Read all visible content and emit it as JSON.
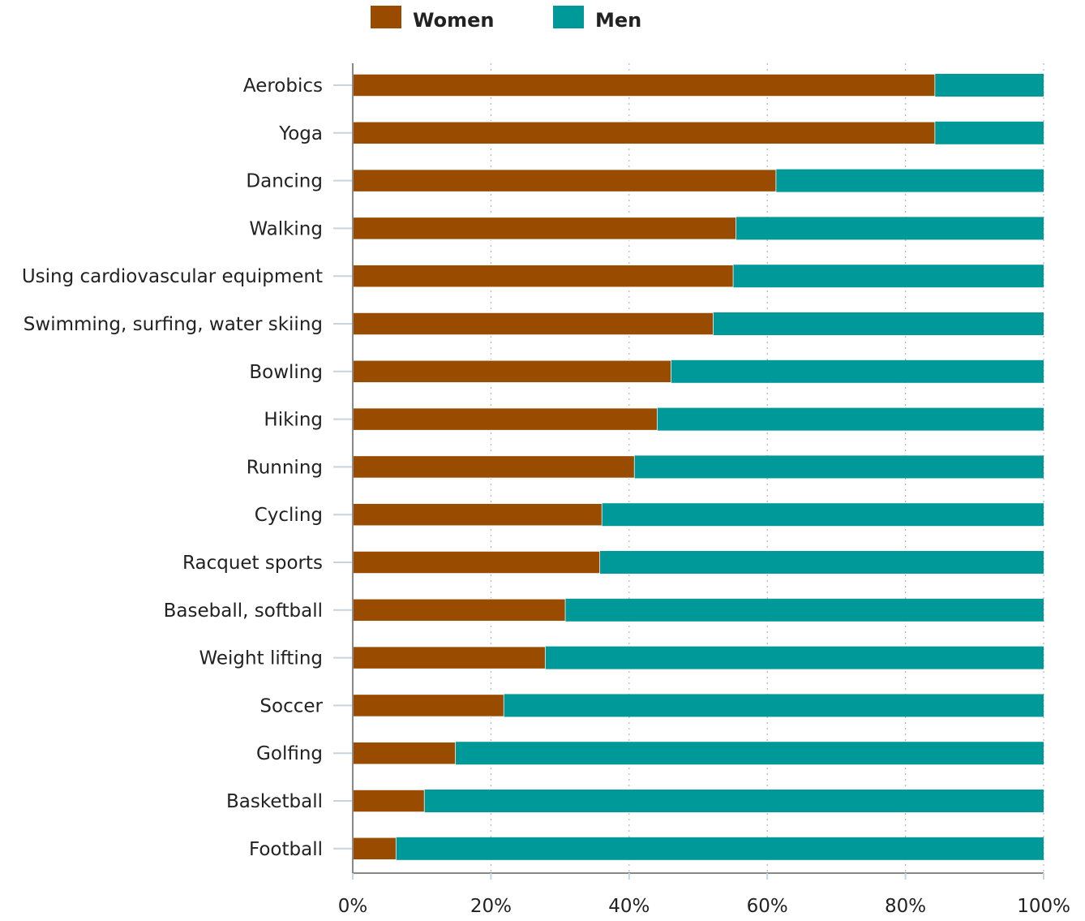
{
  "chart_data": {
    "type": "bar",
    "orientation": "horizontal",
    "stacked": true,
    "percent": true,
    "categories": [
      "Aerobics",
      "Yoga",
      "Dancing",
      "Walking",
      "Using cardiovascular equipment",
      "Swimming, surfing, water skiing",
      "Bowling",
      "Hiking",
      "Running",
      "Cycling",
      "Racquet sports",
      "Baseball, softball",
      "Weight lifting",
      "Soccer",
      "Golfing",
      "Basketball",
      "Football"
    ],
    "series": [
      {
        "name": "Women",
        "color": "#994c00",
        "values": [
          84.3,
          84.3,
          61.3,
          55.5,
          55.1,
          52.2,
          46.1,
          44.1,
          40.8,
          36.1,
          35.8,
          30.8,
          27.9,
          21.9,
          14.9,
          10.4,
          6.3
        ]
      },
      {
        "name": "Men",
        "color": "#009999",
        "values": [
          15.7,
          15.7,
          38.7,
          44.5,
          44.9,
          47.8,
          53.9,
          55.9,
          59.2,
          63.9,
          64.2,
          69.2,
          72.1,
          78.1,
          85.1,
          89.6,
          93.7
        ]
      }
    ],
    "xlim": [
      0,
      100
    ],
    "xticks": [
      "0%",
      "20%",
      "40%",
      "60%",
      "80%",
      "100%"
    ],
    "grid": "vertical-dotted",
    "legend": "top-center"
  }
}
